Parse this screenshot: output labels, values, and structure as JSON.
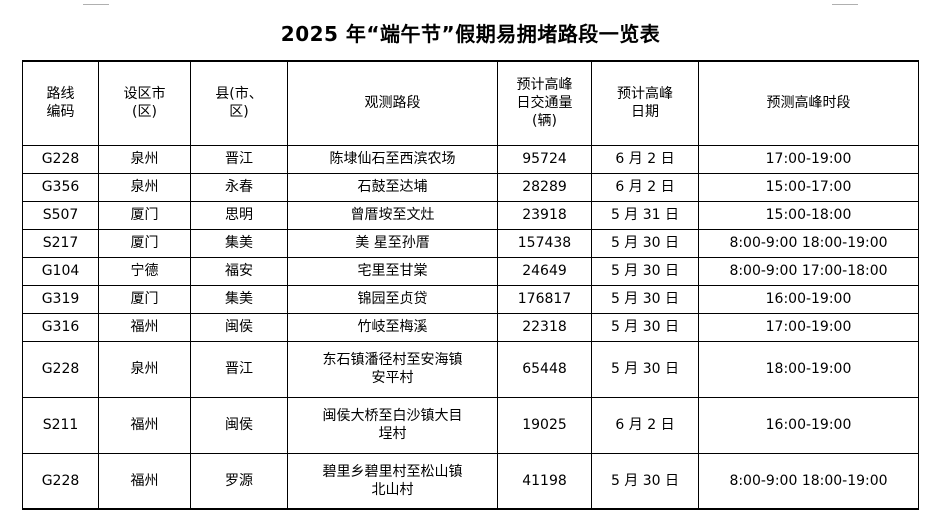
{
  "title": "2025 年“端午节”假期易拥堵路段一览表",
  "headers": {
    "code": [
      "路线",
      "编码"
    ],
    "city": [
      "设区市",
      "(区)"
    ],
    "county": [
      "县(市、",
      "区)"
    ],
    "section": "观测路段",
    "traffic": [
      "预计高峰",
      "日交通量",
      "(辆)"
    ],
    "date": [
      "预计高峰",
      "日期"
    ],
    "period": "预测高峰时段"
  },
  "rows": [
    {
      "code": "G228",
      "city": "泉州",
      "county": "晋江",
      "section": [
        "陈埭仙石至西滨农场"
      ],
      "traffic": "95724",
      "date": "6 月 2 日",
      "period": "17:00-19:00"
    },
    {
      "code": "G356",
      "city": "泉州",
      "county": "永春",
      "section": [
        "石鼓至达埔"
      ],
      "traffic": "28289",
      "date": "6 月 2 日",
      "period": "15:00-17:00"
    },
    {
      "code": "S507",
      "city": "厦门",
      "county": "思明",
      "section": [
        "曾厝垵至文灶"
      ],
      "traffic": "23918",
      "date": "5 月 31 日",
      "period": "15:00-18:00"
    },
    {
      "code": "S217",
      "city": "厦门",
      "county": "集美",
      "section": [
        "美 星至孙厝"
      ],
      "traffic": "157438",
      "date": "5 月 30 日",
      "period": "8:00-9:00 18:00-19:00"
    },
    {
      "code": "G104",
      "city": "宁德",
      "county": "福安",
      "section": [
        "宅里至甘棠"
      ],
      "traffic": "24649",
      "date": "5 月 30 日",
      "period": "8:00-9:00 17:00-18:00"
    },
    {
      "code": "G319",
      "city": "厦门",
      "county": "集美",
      "section": [
        "锦园至贞贷"
      ],
      "traffic": "176817",
      "date": "5 月 30 日",
      "period": "16:00-19:00"
    },
    {
      "code": "G316",
      "city": "福州",
      "county": "闽侯",
      "section": [
        "竹岐至梅溪"
      ],
      "traffic": "22318",
      "date": "5 月 30 日",
      "period": "17:00-19:00"
    },
    {
      "code": "G228",
      "city": "泉州",
      "county": "晋江",
      "section": [
        "东石镇潘径村至安海镇",
        "安平村"
      ],
      "traffic": "65448",
      "date": "5 月 30 日",
      "period": "18:00-19:00"
    },
    {
      "code": "S211",
      "city": "福州",
      "county": "闽侯",
      "section": [
        "闽侯大桥至白沙镇大目",
        "埕村"
      ],
      "traffic": "19025",
      "date": "6 月 2 日",
      "period": "16:00-19:00"
    },
    {
      "code": "G228",
      "city": "福州",
      "county": "罗源",
      "section": [
        "碧里乡碧里村至松山镇",
        "北山村"
      ],
      "traffic": "41198",
      "date": "5 月 30 日",
      "period": "8:00-9:00 18:00-19:00"
    }
  ]
}
